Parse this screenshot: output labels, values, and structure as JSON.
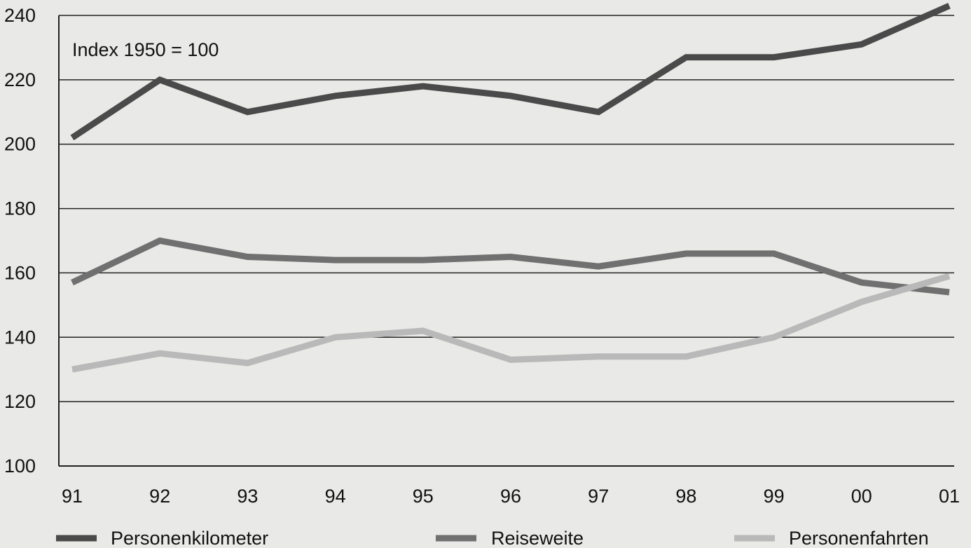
{
  "chart_data": {
    "type": "line",
    "title": "",
    "annotation": "Index 1950 = 100",
    "xlabel": "",
    "ylabel": "",
    "categories": [
      "91",
      "92",
      "93",
      "94",
      "95",
      "96",
      "97",
      "98",
      "99",
      "00",
      "01"
    ],
    "ylim": [
      100,
      240
    ],
    "yticks": [
      100,
      120,
      140,
      160,
      180,
      200,
      220,
      240
    ],
    "grid": "horizontal",
    "legend_position": "bottom",
    "series": [
      {
        "name": "Personenkilometer",
        "color": "#4a4a4a",
        "values": [
          202,
          220,
          210,
          215,
          218,
          215,
          210,
          227,
          227,
          231,
          243
        ]
      },
      {
        "name": "Reiseweite",
        "color": "#707070",
        "values": [
          157,
          170,
          165,
          164,
          164,
          165,
          162,
          166,
          166,
          157,
          154
        ]
      },
      {
        "name": "Personenfahrten",
        "color": "#b9b9b9",
        "values": [
          130,
          135,
          132,
          140,
          142,
          133,
          134,
          134,
          140,
          151,
          159
        ]
      }
    ]
  }
}
